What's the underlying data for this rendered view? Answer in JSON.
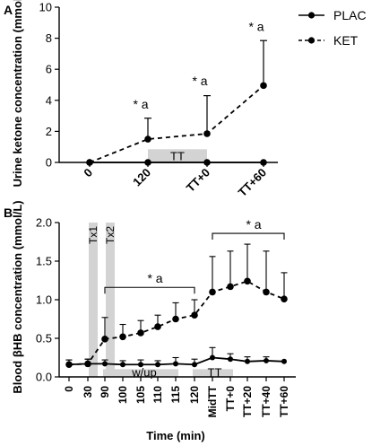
{
  "panels": {
    "A": {
      "letter": "A"
    },
    "B": {
      "letter": "B"
    }
  },
  "legend": [
    {
      "label": "PLAC",
      "line": "solid"
    },
    {
      "label": "KET",
      "line": "dashed"
    }
  ],
  "colors": {
    "ink": "#000000",
    "shade": "#d3d3d3"
  },
  "chart_data": [
    {
      "type": "line",
      "panel": "A",
      "ylabel": "Urine ketone concentration (mmol/L)",
      "ylim": [
        0,
        10
      ],
      "yticks": [
        0,
        2,
        4,
        6,
        8,
        10
      ],
      "categories": [
        "0",
        "120",
        "TT+0",
        "TT+60"
      ],
      "series": [
        {
          "name": "PLAC",
          "values": [
            0,
            0,
            0,
            0
          ]
        },
        {
          "name": "KET",
          "values": [
            0,
            1.5,
            1.85,
            4.95
          ],
          "error_upper": [
            null,
            2.85,
            4.3,
            7.85
          ]
        }
      ],
      "shaded_periods": [
        {
          "label": "TT",
          "from_category": "120",
          "to_category": "TT+0",
          "y_range": [
            0,
            0.85
          ]
        }
      ],
      "annotations": [
        {
          "category": "120",
          "star": "*",
          "text": "a",
          "y": 3.7
        },
        {
          "category": "TT+0",
          "star": "*",
          "text": "a",
          "y": 5.2
        },
        {
          "category": "TT+60",
          "star": "*",
          "text": "a",
          "y": 8.7
        }
      ],
      "grid": false
    },
    {
      "type": "line",
      "panel": "B",
      "ylabel": "Blood βHB concentration (mmol/L)",
      "xlabel": "Time (min)",
      "ylim": [
        0,
        2.0
      ],
      "yticks": [
        "0.0",
        "0.5",
        "1.0",
        "1.5",
        "2.0"
      ],
      "categories": [
        "0",
        "30",
        "90",
        "100",
        "105",
        "110",
        "115",
        "120",
        "MidTT",
        "TT+0",
        "TT+20",
        "TT+40",
        "TT+60"
      ],
      "series": [
        {
          "name": "PLAC",
          "values": [
            0.16,
            0.17,
            0.17,
            0.16,
            0.16,
            0.16,
            0.17,
            0.16,
            0.25,
            0.23,
            0.2,
            0.21,
            0.2
          ],
          "error_upper": [
            0.22,
            0.23,
            0.22,
            0.21,
            0.22,
            0.21,
            0.25,
            0.23,
            0.38,
            0.3,
            0.26,
            0.26,
            null
          ]
        },
        {
          "name": "KET",
          "values": [
            0.16,
            0.17,
            0.49,
            0.52,
            0.57,
            0.65,
            0.75,
            0.8,
            1.1,
            1.17,
            1.24,
            1.1,
            1.01
          ],
          "error_upper": [
            0.22,
            0.23,
            0.77,
            0.68,
            0.73,
            0.8,
            0.96,
            1.0,
            1.56,
            1.63,
            1.72,
            1.63,
            1.35
          ]
        }
      ],
      "shaded_periods": [
        {
          "label": "Tx1",
          "at": "before_90",
          "y_range": [
            0,
            2.0
          ]
        },
        {
          "label": "Tx2",
          "at": "90",
          "y_range": [
            0,
            2.0
          ]
        },
        {
          "label": "w/up",
          "from_category": "90",
          "to_category": "115",
          "y_range": [
            0,
            0.1
          ]
        },
        {
          "label": "TT",
          "from_category": "120",
          "to_category": "TT+0",
          "y_range": [
            0,
            0.1
          ]
        }
      ],
      "brackets": [
        {
          "from_category": "90",
          "to_category": "120",
          "y": 1.16,
          "star": "*",
          "text": "a"
        },
        {
          "from_category": "MidTT",
          "to_category": "TT+60",
          "y": 1.86,
          "star": "*",
          "text": "a"
        }
      ],
      "grid": false
    }
  ]
}
